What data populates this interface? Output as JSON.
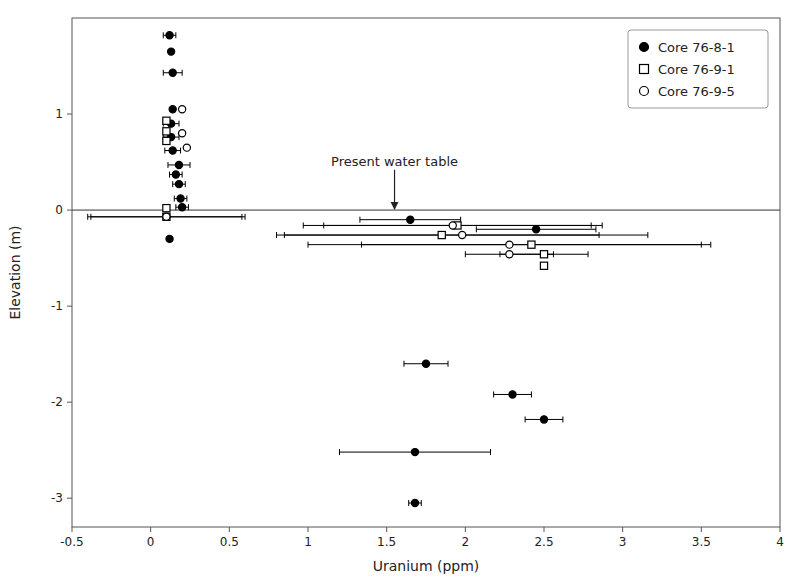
{
  "chart_data": {
    "type": "scatter",
    "xlabel": "Uranium (ppm)",
    "ylabel": "Elevation (m)",
    "xlim": [
      -0.5,
      4
    ],
    "ylim": [
      -3.3,
      2.0
    ],
    "xticks": [
      -0.5,
      0,
      0.5,
      1,
      1.5,
      2,
      2.5,
      3,
      3.5,
      4
    ],
    "yticks": [
      -3,
      -2,
      -1,
      0,
      1
    ],
    "grid": false,
    "legend": "upper right",
    "water_table": 0.0,
    "annotations": [
      {
        "text": "Present water table",
        "x": 1.55,
        "y": 0.0,
        "text_y": 0.42
      }
    ],
    "series": [
      {
        "name": "Core 76-8-1",
        "marker": "filled-circle",
        "color": "#000000",
        "x": [
          0.12,
          0.13,
          0.14,
          0.14,
          0.13,
          0.13,
          0.14,
          0.18,
          0.16,
          0.18,
          0.19,
          0.2,
          1.65,
          2.45,
          0.12,
          1.75,
          2.3,
          2.5,
          1.68,
          1.68
        ],
        "values": [
          1.82,
          1.65,
          1.43,
          1.05,
          0.9,
          0.76,
          0.62,
          0.47,
          0.37,
          0.27,
          0.12,
          0.03,
          -0.1,
          -0.2,
          -0.3,
          -1.6,
          -1.92,
          -2.18,
          -2.52,
          -3.05
        ],
        "xerr": [
          0.04,
          0.0,
          0.06,
          0.0,
          0.05,
          0.05,
          0.05,
          0.07,
          0.04,
          0.04,
          0.04,
          0.04,
          0.32,
          0.38,
          0.0,
          0.14,
          0.12,
          0.12,
          0.48,
          0.04
        ]
      },
      {
        "name": "Core 76-9-1",
        "marker": "open-square",
        "color": "#000000",
        "x": [
          0.1,
          0.1,
          0.1,
          0.1,
          0.1,
          1.95,
          1.85,
          2.42,
          2.5,
          2.5
        ],
        "values": [
          0.93,
          0.82,
          0.72,
          0.02,
          -0.07,
          -0.16,
          -0.26,
          -0.36,
          -0.46,
          -0.58
        ],
        "xerr": [
          0.0,
          0.0,
          0.0,
          0.0,
          0.5,
          0.85,
          1.0,
          1.08,
          0.28,
          0.0
        ]
      },
      {
        "name": "Core 76-9-5",
        "marker": "open-circle",
        "color": "#000000",
        "x": [
          0.2,
          0.2,
          0.23,
          0.1,
          1.92,
          1.98,
          2.28,
          2.28
        ],
        "values": [
          1.05,
          0.8,
          0.65,
          -0.07,
          -0.16,
          -0.26,
          -0.36,
          -0.46
        ],
        "xerr": [
          0.0,
          0.0,
          0.0,
          0.48,
          0.95,
          1.18,
          1.28,
          0.28
        ]
      }
    ]
  }
}
